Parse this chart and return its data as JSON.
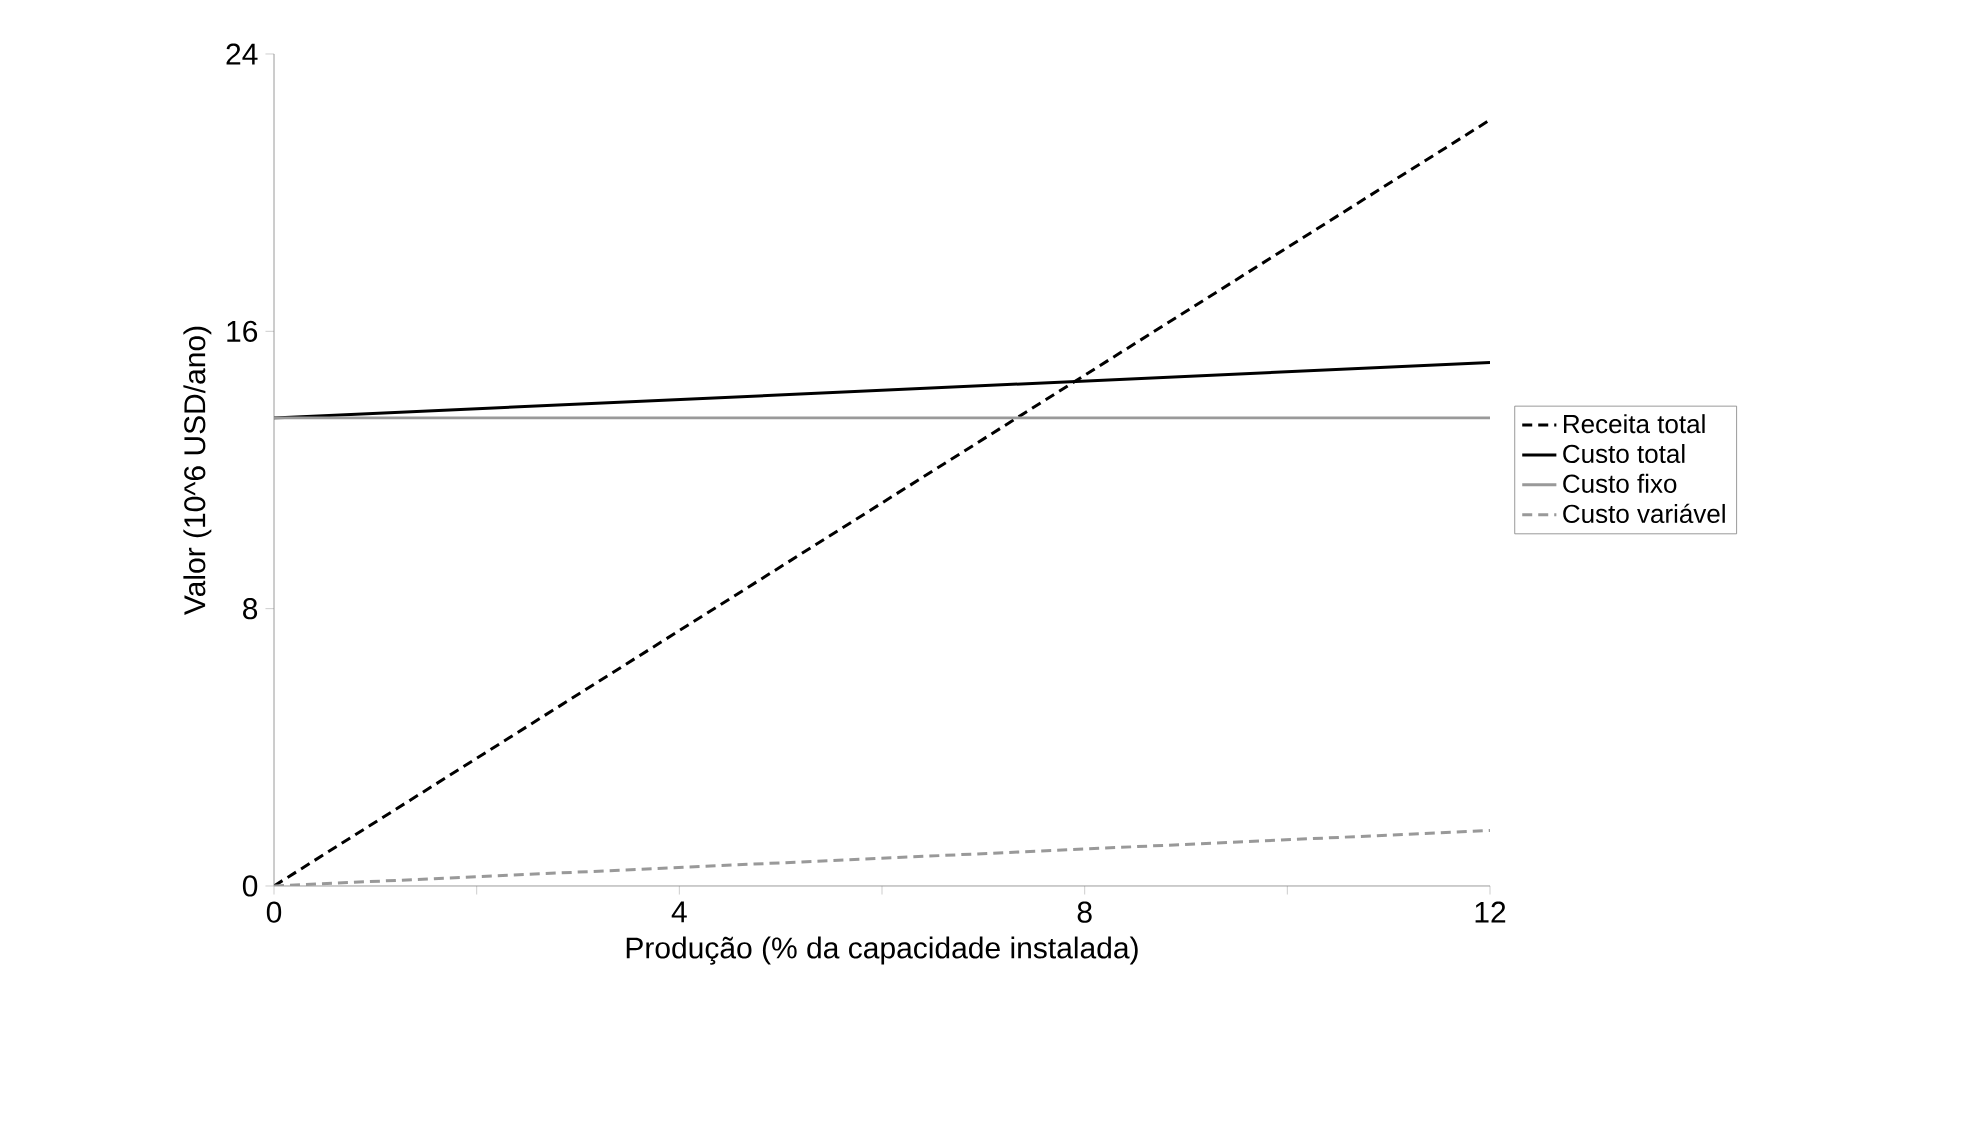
{
  "chart_data": {
    "type": "line",
    "xlabel": "Produção (% da capacidade instalada)",
    "ylabel": "Valor (10^6 USD/ano)",
    "x": [
      0,
      12
    ],
    "series": [
      {
        "name": "Receita total",
        "color": "#000000",
        "line_style": "dashed",
        "values": [
          0,
          22.1
        ]
      },
      {
        "name": "Custo total",
        "color": "#000000",
        "line_style": "solid",
        "values": [
          13.5,
          15.1
        ]
      },
      {
        "name": "Custo fixo",
        "color": "#999999",
        "line_style": "solid",
        "values": [
          13.5,
          13.5
        ]
      },
      {
        "name": "Custo variável",
        "color": "#999999",
        "line_style": "dashed",
        "values": [
          0,
          1.6
        ]
      }
    ],
    "xlim": [
      0,
      12
    ],
    "ylim": [
      0,
      24
    ],
    "xticks": [
      0,
      {
        "value": 2,
        "label": null
      },
      4,
      {
        "value": 6,
        "label": null
      },
      8,
      {
        "value": 10,
        "label": null
      },
      12
    ],
    "yticks": [
      0,
      8,
      16,
      24
    ],
    "grid": false,
    "legend": "right",
    "marker": "none"
  }
}
